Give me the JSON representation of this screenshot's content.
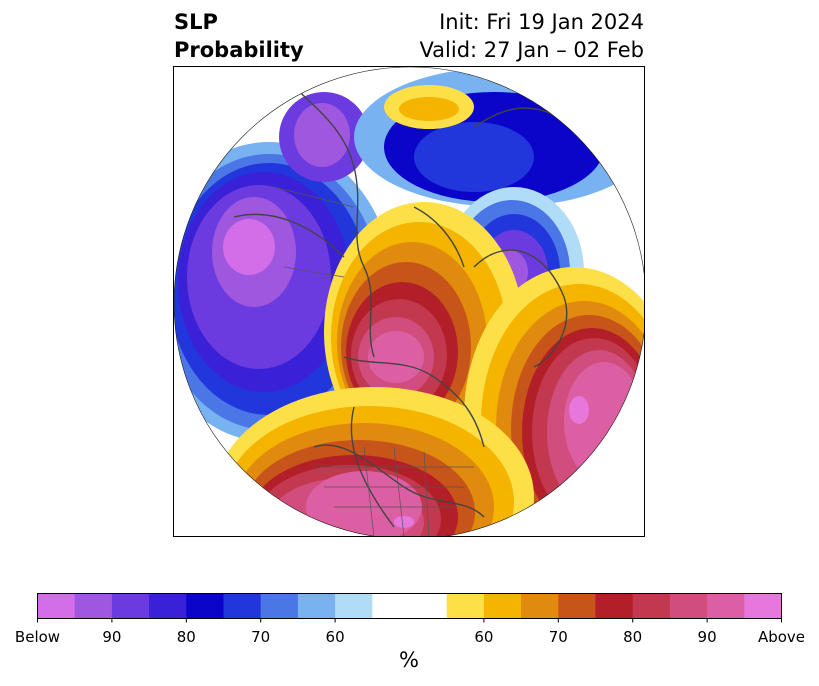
{
  "title": {
    "left_line1": "SLP",
    "left_line2": "Probability",
    "right_line1": "Init: Fri 19 Jan 2024",
    "right_line2": "Valid: 27 Jan – 02 Feb"
  },
  "colorbar": {
    "unit": "%",
    "colors": [
      "#d36ee8",
      "#9f57e0",
      "#6b3be0",
      "#3a20d6",
      "#0b05c9",
      "#2137dc",
      "#4b76e6",
      "#78b2f1",
      "#b1dcf8",
      "#ffffff",
      "#ffffff",
      "#fde047",
      "#f5b400",
      "#e08a0e",
      "#c7551a",
      "#b31f28",
      "#c2384e",
      "#d04d7e",
      "#dc5fa4",
      "#e877dc"
    ],
    "ticks": [
      {
        "label": "Below",
        "index": 0
      },
      {
        "label": "90",
        "index": 2
      },
      {
        "label": "80",
        "index": 4
      },
      {
        "label": "70",
        "index": 6
      },
      {
        "label": "60",
        "index": 8
      },
      {
        "label": "60",
        "index": 12
      },
      {
        "label": "70",
        "index": 14
      },
      {
        "label": "80",
        "index": 16
      },
      {
        "label": "90",
        "index": 18
      },
      {
        "label": "Above",
        "index": 20
      }
    ]
  },
  "map": {
    "projection": "north-polar-stereographic",
    "features": [
      {
        "name": "below-eurasia-ural",
        "category": "below"
      },
      {
        "name": "below-central-asia",
        "category": "below"
      },
      {
        "name": "below-scandinavia",
        "category": "below"
      },
      {
        "name": "below-greenland-west",
        "category": "below"
      },
      {
        "name": "above-arctic-russia",
        "category": "above"
      },
      {
        "name": "above-alaska-pacific",
        "category": "above"
      },
      {
        "name": "above-north-america",
        "category": "above"
      },
      {
        "name": "above-atlantic-europe",
        "category": "above"
      }
    ]
  }
}
